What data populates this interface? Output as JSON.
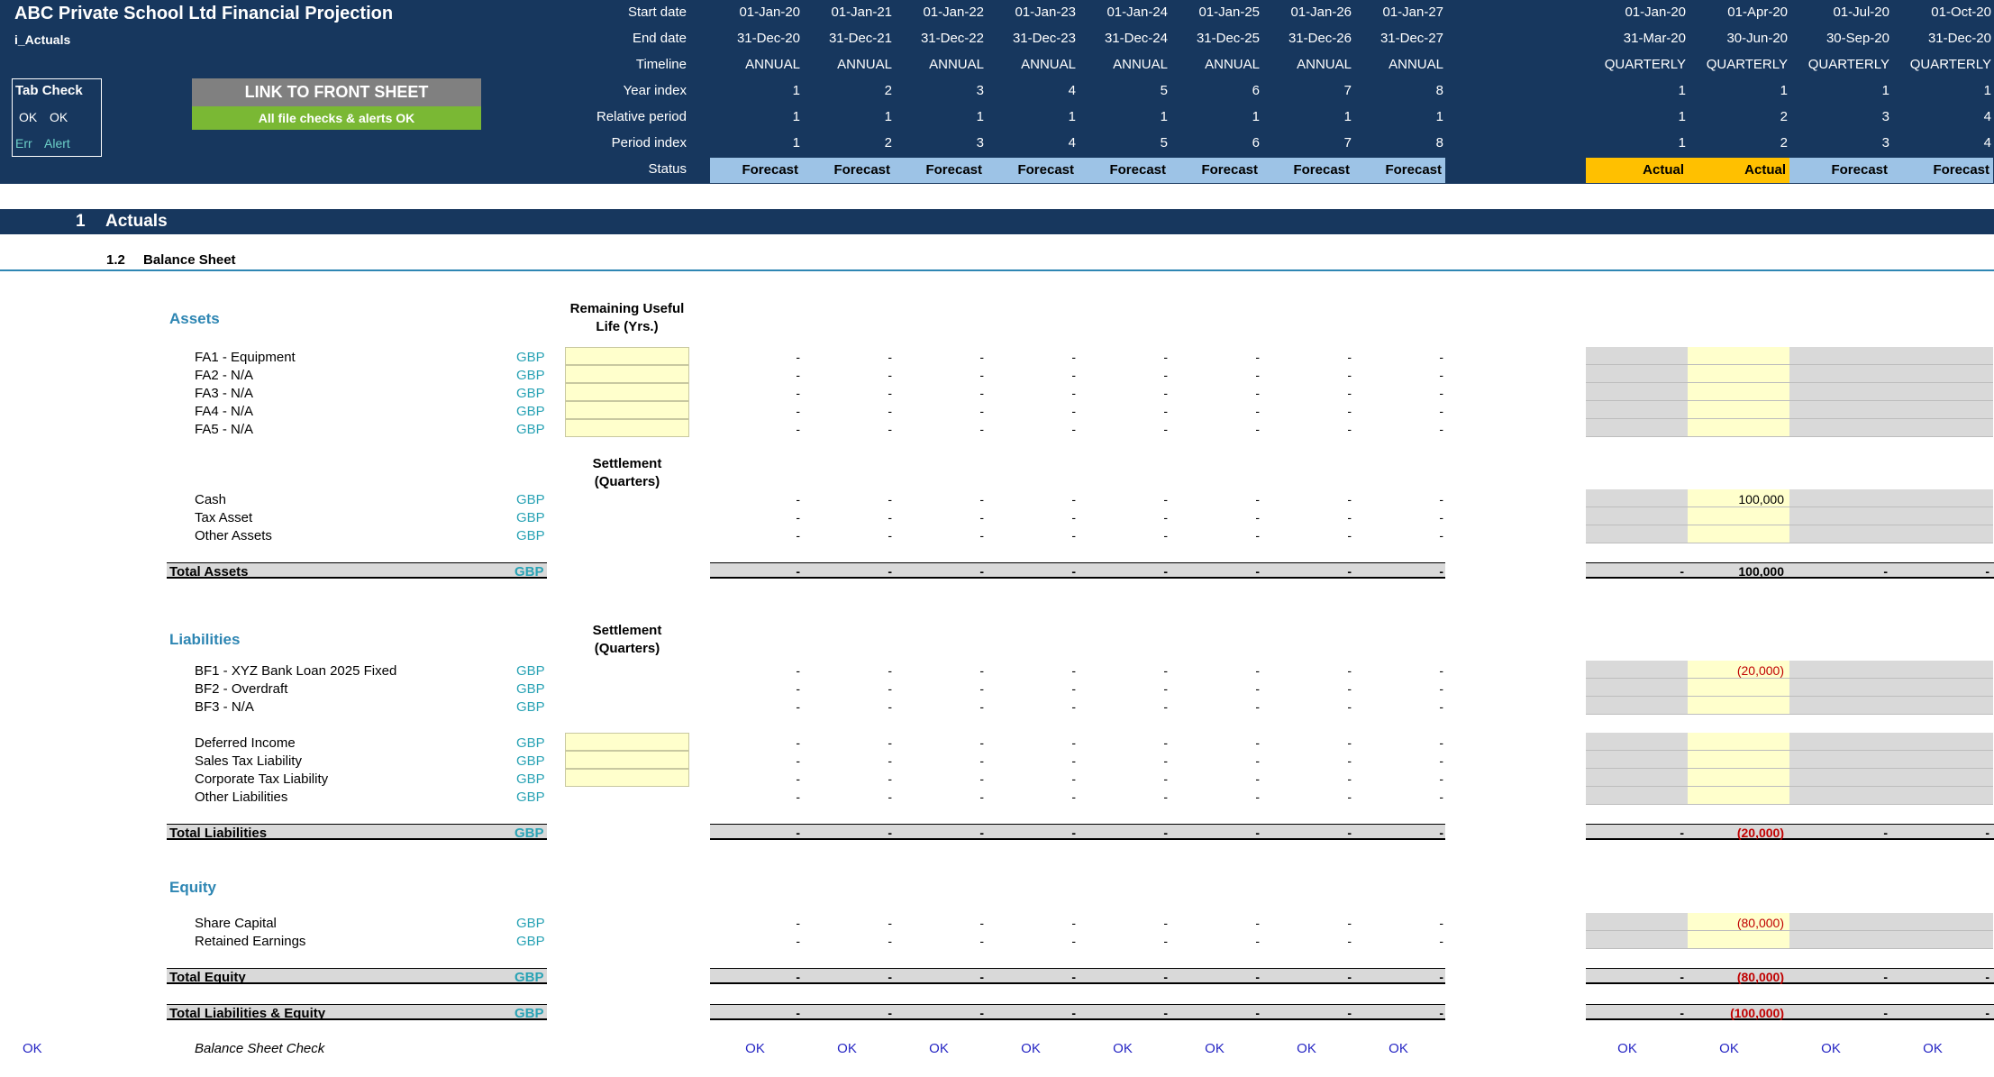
{
  "title": "ABC Private School Ltd Financial Projection",
  "sheet": "i_Actuals",
  "row_labels": [
    "Start date",
    "End date",
    "Timeline",
    "Year index",
    "Relative period",
    "Period index",
    "Status"
  ],
  "annual": {
    "start": [
      "01-Jan-20",
      "01-Jan-21",
      "01-Jan-22",
      "01-Jan-23",
      "01-Jan-24",
      "01-Jan-25",
      "01-Jan-26",
      "01-Jan-27"
    ],
    "end": [
      "31-Dec-20",
      "31-Dec-21",
      "31-Dec-22",
      "31-Dec-23",
      "31-Dec-24",
      "31-Dec-25",
      "31-Dec-26",
      "31-Dec-27"
    ],
    "timeline": "ANNUAL",
    "year_index": [
      "1",
      "2",
      "3",
      "4",
      "5",
      "6",
      "7",
      "8"
    ],
    "relative": [
      "1",
      "1",
      "1",
      "1",
      "1",
      "1",
      "1",
      "1"
    ],
    "period": [
      "1",
      "2",
      "3",
      "4",
      "5",
      "6",
      "7",
      "8"
    ],
    "status": "Forecast"
  },
  "quarterly": {
    "start": [
      "01-Jan-20",
      "01-Apr-20",
      "01-Jul-20",
      "01-Oct-20"
    ],
    "end": [
      "31-Mar-20",
      "30-Jun-20",
      "30-Sep-20",
      "31-Dec-20"
    ],
    "timeline": "QUARTERLY",
    "year_index": [
      "1",
      "1",
      "1",
      "1"
    ],
    "relative": [
      "1",
      "2",
      "3",
      "4"
    ],
    "period": [
      "1",
      "2",
      "3",
      "4"
    ],
    "status": [
      "Actual",
      "Actual",
      "Forecast",
      "Forecast"
    ]
  },
  "tab_check": {
    "title": "Tab Check",
    "ok1": "OK",
    "ok2": "OK",
    "err": "Err",
    "alert": "Alert"
  },
  "buttons": {
    "link": "LINK TO FRONT SHEET",
    "checks": "All file checks & alerts OK"
  },
  "section": {
    "number": "1",
    "title": "Actuals"
  },
  "subsection": {
    "number": "1.2",
    "title": "Balance Sheet"
  },
  "currency": "GBP",
  "dash": "-",
  "assets": {
    "title": "Assets",
    "column_header_1": "Remaining Useful",
    "column_header_2": "Life (Yrs.)",
    "fixed": [
      "FA1 - Equipment",
      "FA2 - N/A",
      "FA3 - N/A",
      "FA4 - N/A",
      "FA5 - N/A"
    ],
    "settlement_1": "Settlement",
    "settlement_2": "(Quarters)",
    "current": [
      "Cash",
      "Tax Asset",
      "Other Assets"
    ],
    "cash_q2": "100,000",
    "total_label": "Total Assets",
    "total_q2": "100,000"
  },
  "liabilities": {
    "title": "Liabilities",
    "settlement_1": "Settlement",
    "settlement_2": "(Quarters)",
    "borrowings": [
      "BF1 - XYZ Bank Loan 2025 Fixed",
      "BF2 - Overdraft",
      "BF3 - N/A"
    ],
    "bf1_q2": "(20,000)",
    "other": [
      "Deferred Income",
      "Sales Tax Liability",
      "Corporate Tax Liability",
      "Other Liabilities"
    ],
    "total_label": "Total Liabilities",
    "total_q2": "(20,000)"
  },
  "equity": {
    "title": "Equity",
    "items": [
      "Share Capital",
      "Retained Earnings"
    ],
    "share_q2": "(80,000)",
    "total_label": "Total Equity",
    "total_q2": "(80,000)"
  },
  "total_le": {
    "label": "Total Liabilities & Equity",
    "q2": "(100,000)"
  },
  "check": {
    "left": "OK",
    "label": "Balance Sheet Check",
    "value": "OK"
  },
  "colors": {
    "header": "#17375e",
    "forecast": "#9dc3e6",
    "actual": "#ffc000",
    "input": "#ffffcc",
    "accent": "#2e86b3"
  }
}
